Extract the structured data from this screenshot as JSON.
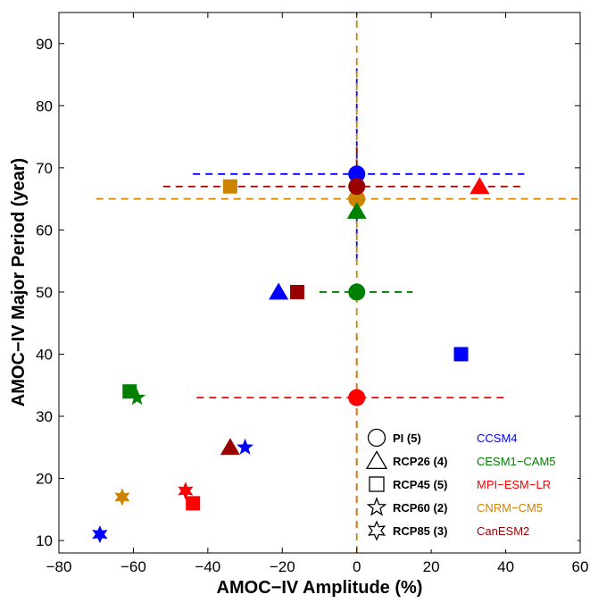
{
  "chart_data": {
    "type": "scatter",
    "xlabel": "AMOC−IV Amplitude (%)",
    "ylabel": "AMOC−IV Major Period (year)",
    "xlim": [
      -80,
      60
    ],
    "ylim": [
      8,
      95
    ],
    "xticks": [
      -80,
      -60,
      -40,
      -20,
      0,
      20,
      40,
      60
    ],
    "yticks": [
      10,
      20,
      30,
      40,
      50,
      60,
      70,
      80,
      90
    ],
    "xtick_labels": [
      "−80",
      "−60",
      "−40",
      "−20",
      "0",
      "20",
      "40",
      "60"
    ],
    "ytick_labels": [
      "10",
      "20",
      "30",
      "40",
      "50",
      "60",
      "70",
      "80",
      "90"
    ],
    "grid": false,
    "legend_position": "bottom-right",
    "models": [
      {
        "name": "CCSM4",
        "color": "#0000ff"
      },
      {
        "name": "CESM1−CAM5",
        "color": "#008000"
      },
      {
        "name": "MPI−ESM−LR",
        "color": "#ff0000"
      },
      {
        "name": "CNRM−CM5",
        "color": "#cc8400"
      },
      {
        "name": "CanESM2",
        "color": "#990000"
      }
    ],
    "scenarios": [
      {
        "name": "PI (5)",
        "marker": "circle"
      },
      {
        "name": "RCP26 (4)",
        "marker": "triangle"
      },
      {
        "name": "RCP45 (5)",
        "marker": "square"
      },
      {
        "name": "RCP60 (2)",
        "marker": "star5"
      },
      {
        "name": "RCP85 (3)",
        "marker": "star6"
      }
    ],
    "pi_ranges": [
      {
        "model": "CCSM4",
        "x": 0,
        "y": 69,
        "x_range": [
          -44,
          45
        ],
        "y_range": [
          55,
          86
        ]
      },
      {
        "model": "CESM1−CAM5",
        "x": 0,
        "y": 50,
        "x_range": [
          -10,
          15
        ],
        "y_range": null
      },
      {
        "model": "MPI−ESM−LR",
        "x": 0,
        "y": 33,
        "x_range": [
          -43,
          40
        ],
        "y_range": [
          12,
          43
        ]
      },
      {
        "model": "CNRM−CM5",
        "x": 0,
        "y": 65,
        "x_range": [
          -70,
          70
        ],
        "y_range": [
          5,
          95
        ]
      },
      {
        "model": "CanESM2",
        "x": 0,
        "y": 67,
        "x_range": [
          -52,
          45
        ],
        "y_range": [
          62,
          74
        ]
      }
    ],
    "points": [
      {
        "model": "CCSM4",
        "scenario": "PI (5)",
        "x": 0,
        "y": 69
      },
      {
        "model": "CESM1−CAM5",
        "scenario": "PI (5)",
        "x": 0,
        "y": 50
      },
      {
        "model": "MPI−ESM−LR",
        "scenario": "PI (5)",
        "x": 0,
        "y": 33
      },
      {
        "model": "CNRM−CM5",
        "scenario": "PI (5)",
        "x": 0,
        "y": 65
      },
      {
        "model": "CanESM2",
        "scenario": "PI (5)",
        "x": 0,
        "y": 67
      },
      {
        "model": "CCSM4",
        "scenario": "RCP26 (4)",
        "x": -21,
        "y": 50
      },
      {
        "model": "CESM1−CAM5",
        "scenario": "RCP26 (4)",
        "x": 0,
        "y": 63
      },
      {
        "model": "MPI−ESM−LR",
        "scenario": "RCP26 (4)",
        "x": 33,
        "y": 67
      },
      {
        "model": "CanESM2",
        "scenario": "RCP26 (4)",
        "x": -34,
        "y": 25
      },
      {
        "model": "CCSM4",
        "scenario": "RCP45 (5)",
        "x": 28,
        "y": 40
      },
      {
        "model": "CESM1−CAM5",
        "scenario": "RCP45 (5)",
        "x": -61,
        "y": 34
      },
      {
        "model": "MPI−ESM−LR",
        "scenario": "RCP45 (5)",
        "x": -44,
        "y": 16
      },
      {
        "model": "CNRM−CM5",
        "scenario": "RCP45 (5)",
        "x": -34,
        "y": 67
      },
      {
        "model": "CanESM2",
        "scenario": "RCP45 (5)",
        "x": -16,
        "y": 50
      },
      {
        "model": "CCSM4",
        "scenario": "RCP60 (2)",
        "x": -30,
        "y": 25
      },
      {
        "model": "CESM1−CAM5",
        "scenario": "RCP60 (2)",
        "x": -59,
        "y": 33
      },
      {
        "model": "CCSM4",
        "scenario": "RCP85 (3)",
        "x": -69,
        "y": 11
      },
      {
        "model": "MPI−ESM−LR",
        "scenario": "RCP85 (3)",
        "x": -46,
        "y": 18
      },
      {
        "model": "CNRM−CM5",
        "scenario": "RCP85 (3)",
        "x": -63,
        "y": 17
      }
    ]
  }
}
